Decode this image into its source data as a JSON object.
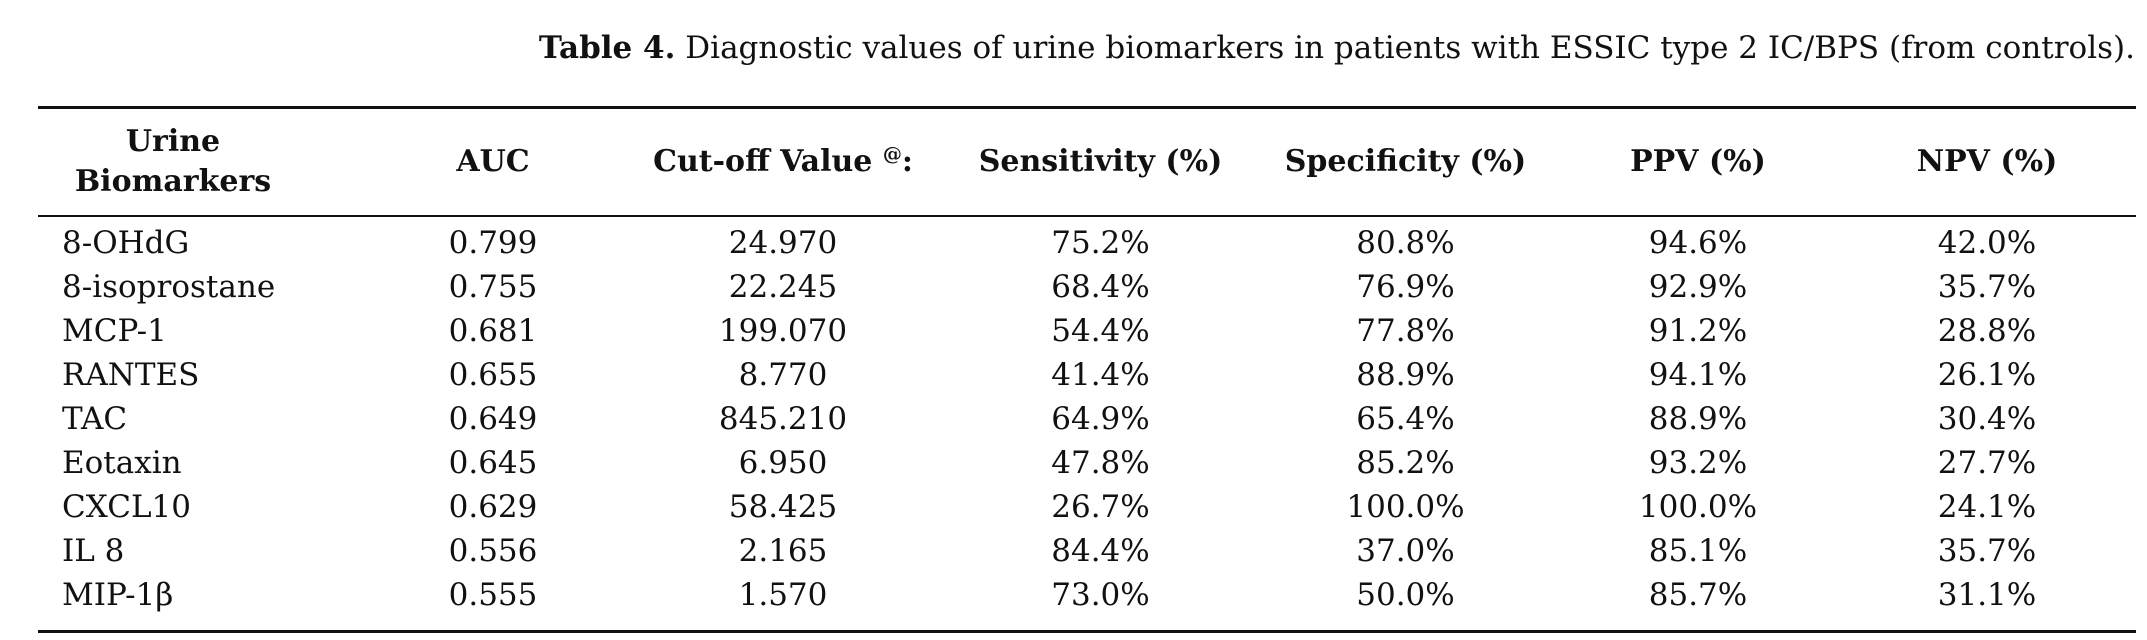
{
  "caption": {
    "label": "Table 4.",
    "text": "Diagnostic values of urine biomarkers in patients with ESSIC type 2 IC/BPS (from controls)."
  },
  "table": {
    "headers": {
      "biomarker_line1": "Urine",
      "biomarker_line2": "Biomarkers",
      "auc": "AUC",
      "cutoff": "Cut-off Value",
      "cutoff_sup": "@",
      "cutoff_suffix": ":",
      "sensitivity": "Sensitivity (%)",
      "specificity": "Specificity (%)",
      "ppv": "PPV (%)",
      "npv": "NPV (%)"
    },
    "rows": [
      {
        "name": "8-OHdG",
        "auc": "0.799",
        "cutoff": "24.970",
        "sensitivity": "75.2%",
        "specificity": "80.8%",
        "ppv": "94.6%",
        "npv": "42.0%"
      },
      {
        "name": "8-isoprostane",
        "auc": "0.755",
        "cutoff": "22.245",
        "sensitivity": "68.4%",
        "specificity": "76.9%",
        "ppv": "92.9%",
        "npv": "35.7%"
      },
      {
        "name": "MCP-1",
        "auc": "0.681",
        "cutoff": "199.070",
        "sensitivity": "54.4%",
        "specificity": "77.8%",
        "ppv": "91.2%",
        "npv": "28.8%"
      },
      {
        "name": "RANTES",
        "auc": "0.655",
        "cutoff": "8.770",
        "sensitivity": "41.4%",
        "specificity": "88.9%",
        "ppv": "94.1%",
        "npv": "26.1%"
      },
      {
        "name": "TAC",
        "auc": "0.649",
        "cutoff": "845.210",
        "sensitivity": "64.9%",
        "specificity": "65.4%",
        "ppv": "88.9%",
        "npv": "30.4%"
      },
      {
        "name": "Eotaxin",
        "auc": "0.645",
        "cutoff": "6.950",
        "sensitivity": "47.8%",
        "specificity": "85.2%",
        "ppv": "93.2%",
        "npv": "27.7%"
      },
      {
        "name": "CXCL10",
        "auc": "0.629",
        "cutoff": "58.425",
        "sensitivity": "26.7%",
        "specificity": "100.0%",
        "ppv": "100.0%",
        "npv": "24.1%"
      },
      {
        "name": "IL 8",
        "auc": "0.556",
        "cutoff": "2.165",
        "sensitivity": "84.4%",
        "specificity": "37.0%",
        "ppv": "85.1%",
        "npv": "35.7%"
      },
      {
        "name": "MIP-1β",
        "auc": "0.555",
        "cutoff": "1.570",
        "sensitivity": "73.0%",
        "specificity": "50.0%",
        "ppv": "85.7%",
        "npv": "31.1%"
      }
    ]
  }
}
